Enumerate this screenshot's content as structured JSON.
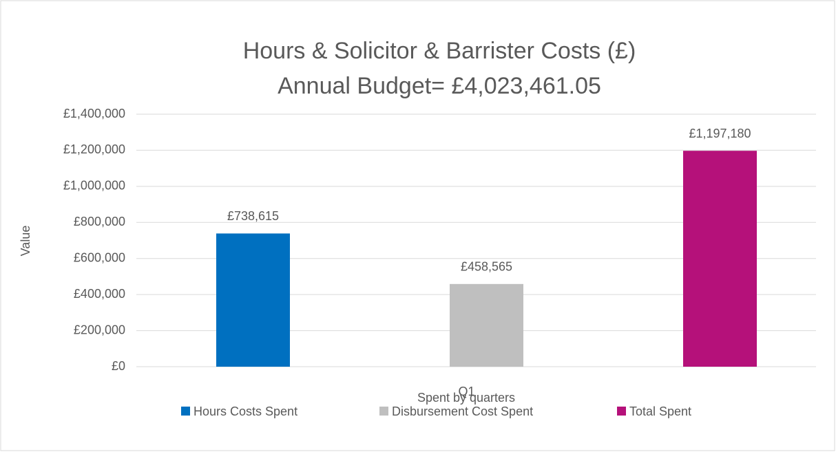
{
  "chart_data": {
    "type": "bar",
    "title": "Hours & Solicitor & Barrister Costs (£)",
    "subtitle": "Annual Budget= £4,023,461.05",
    "y_label": "Value",
    "x_label": "Spent by quarters",
    "categories": [
      "Q1"
    ],
    "series": [
      {
        "name": "Hours Costs Spent",
        "color": "#0070c0",
        "values": [
          738615
        ],
        "value_labels": [
          "£738,615"
        ]
      },
      {
        "name": "Disbursement Cost Spent",
        "color": "#bfbfbf",
        "values": [
          458565
        ],
        "value_labels": [
          "£458,565"
        ]
      },
      {
        "name": "Total Spent",
        "color": "#b5117a",
        "values": [
          1197180
        ],
        "value_labels": [
          "£1,197,180"
        ]
      }
    ],
    "ylim": [
      0,
      1400000
    ],
    "yticks": [
      {
        "value": 0,
        "label": "£0"
      },
      {
        "value": 200000,
        "label": "£200,000"
      },
      {
        "value": 400000,
        "label": "£400,000"
      },
      {
        "value": 600000,
        "label": "£600,000"
      },
      {
        "value": 800000,
        "label": "£800,000"
      },
      {
        "value": 1000000,
        "label": "£1,000,000"
      },
      {
        "value": 1200000,
        "label": "£1,200,000"
      },
      {
        "value": 1400000,
        "label": "£1,400,000"
      }
    ],
    "grid": true,
    "legend": "bottom"
  }
}
